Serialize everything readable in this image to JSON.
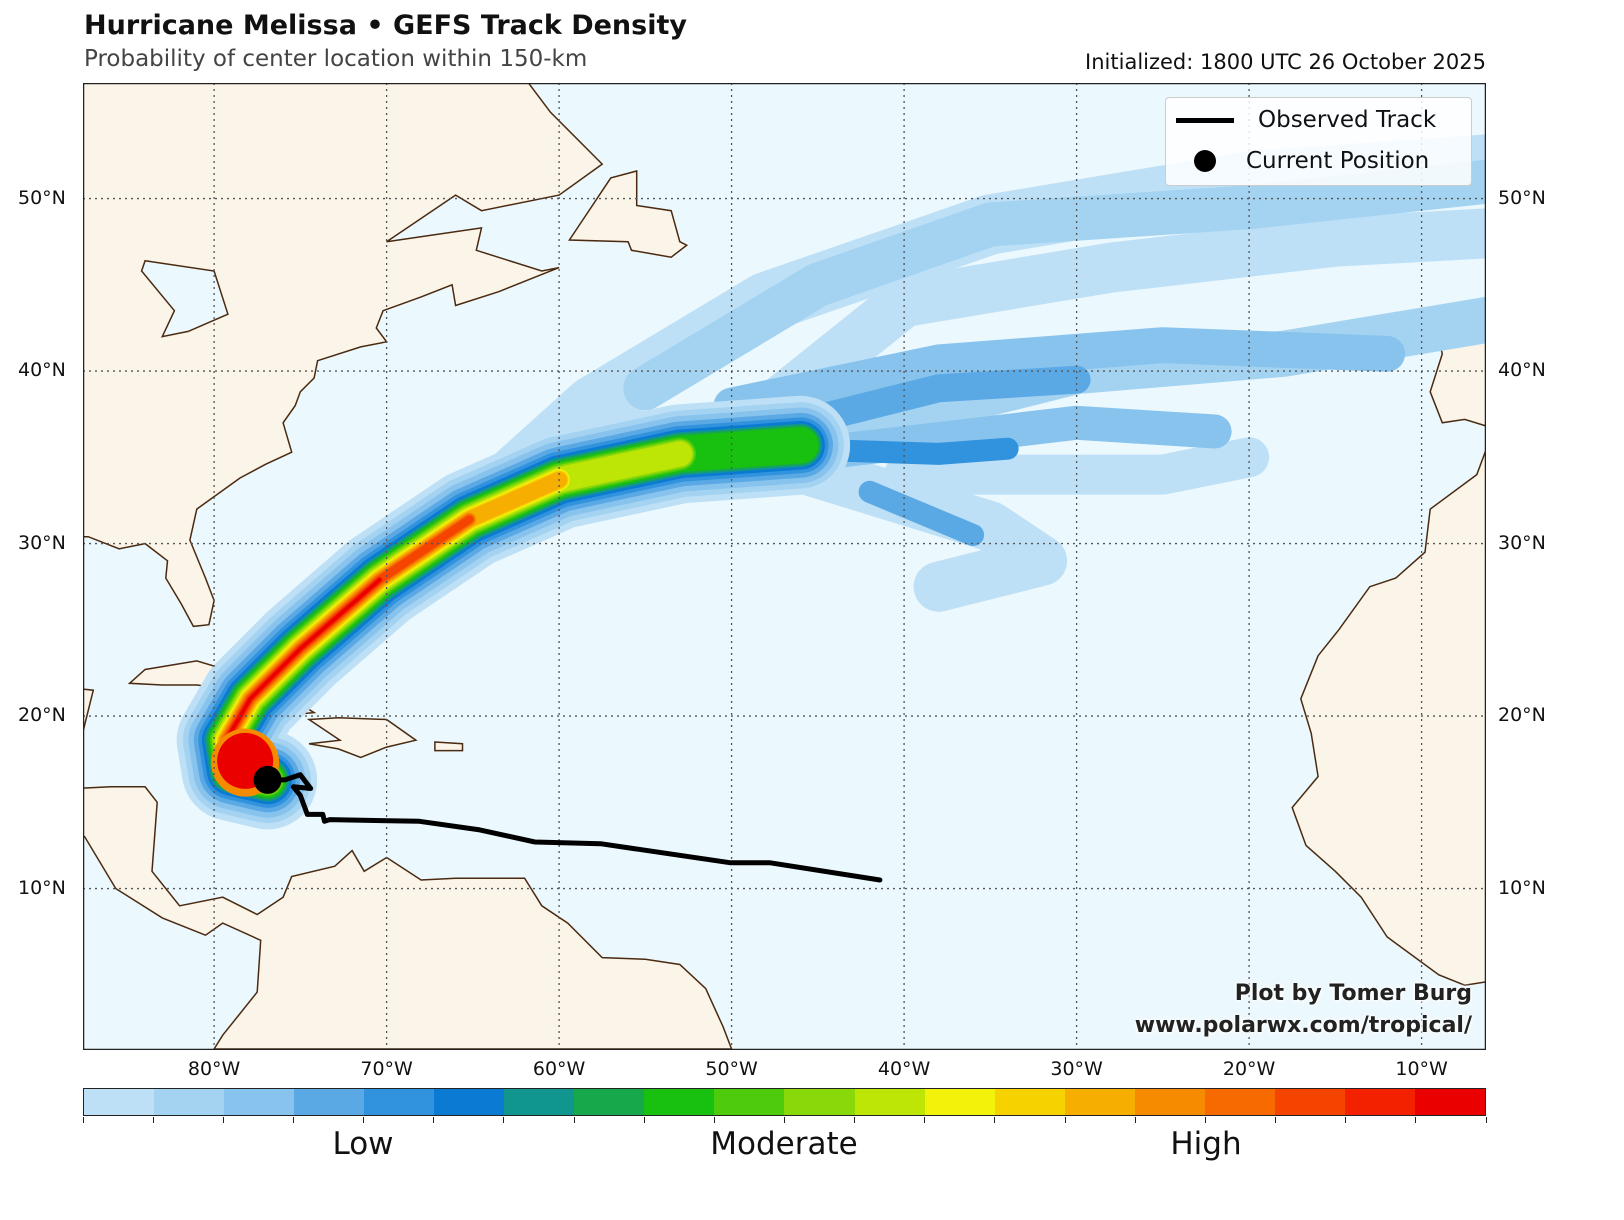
{
  "header": {
    "title": "Hurricane Melissa • GEFS Track Density",
    "subtitle": "Probability of center location within 150-km",
    "initialized": "Initialized: 1800 UTC 26 October 2025"
  },
  "map": {
    "lon_range": [
      -87.6,
      -6.2
    ],
    "lat_range": [
      0.7,
      56.7
    ],
    "lon_ticks": [
      -80,
      -70,
      -60,
      -50,
      -40,
      -30,
      -20,
      -10
    ],
    "lon_labels": [
      "80°W",
      "70°W",
      "60°W",
      "50°W",
      "40°W",
      "30°W",
      "20°W",
      "10°W"
    ],
    "lat_ticks": [
      10,
      20,
      30,
      40,
      50
    ],
    "lat_labels": [
      "10°N",
      "20°N",
      "30°N",
      "40°N",
      "50°N"
    ],
    "colors": {
      "ocean": "#ebf8fd",
      "land": "#fbf4e8",
      "coast": "#4a2a10",
      "track": "#000000"
    },
    "observed_track": [
      [
        -41.4,
        10.5
      ],
      [
        -47.8,
        11.5
      ],
      [
        -50.1,
        11.5
      ],
      [
        -57.6,
        12.6
      ],
      [
        -61.4,
        12.7
      ],
      [
        -64.6,
        13.4
      ],
      [
        -68.1,
        13.9
      ],
      [
        -73.3,
        14.0
      ],
      [
        -73.6,
        13.9
      ],
      [
        -73.7,
        14.3
      ],
      [
        -74.6,
        14.3
      ],
      [
        -75.0,
        15.4
      ],
      [
        -75.4,
        15.9
      ],
      [
        -74.4,
        15.8
      ],
      [
        -75.0,
        16.6
      ],
      [
        -75.9,
        16.3
      ],
      [
        -76.9,
        16.3
      ]
    ],
    "current_position": [
      -76.9,
      16.3
    ]
  },
  "legend": {
    "observed_track": "Observed Track",
    "current_position": "Current Position"
  },
  "credit": {
    "line1": "Plot by Tomer Burg",
    "line2": "www.polarwx.com/tropical/"
  },
  "colorbar": {
    "colors": [
      "#bde0f7",
      "#a4d3f2",
      "#88c3ee",
      "#5ba9e4",
      "#3193dd",
      "#0b7ad3",
      "#10968f",
      "#17a84c",
      "#18c10f",
      "#4ecb0d",
      "#89d80a",
      "#bde606",
      "#f3f20a",
      "#f6d200",
      "#f6ae00",
      "#f68b00",
      "#f66a00",
      "#f54300",
      "#f42100",
      "#eb0000"
    ],
    "labels": [
      "Low",
      "Moderate",
      "High"
    ]
  }
}
